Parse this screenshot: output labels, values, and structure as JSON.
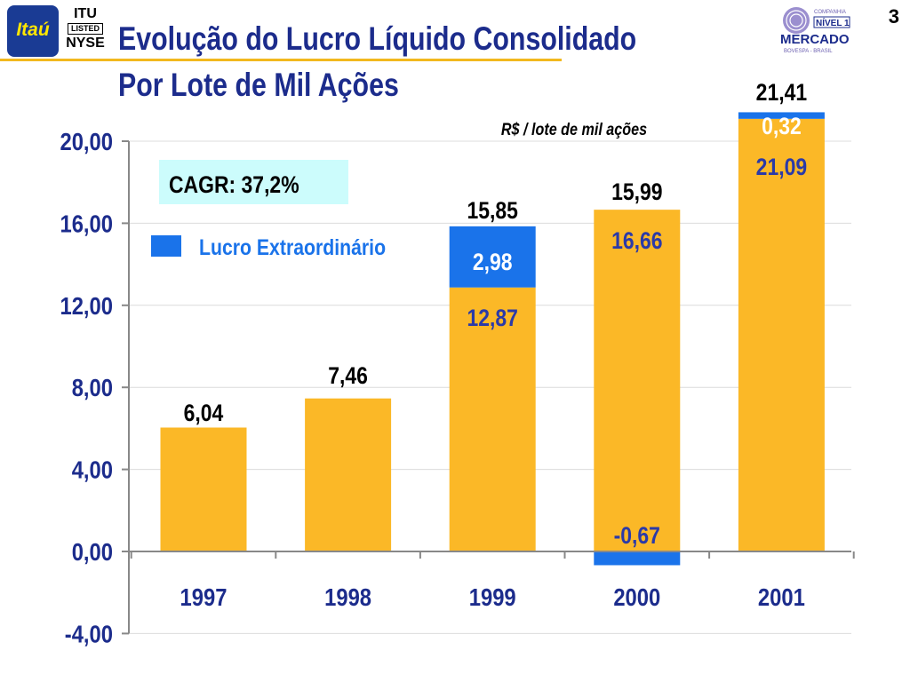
{
  "header": {
    "title_line1": "Evolução do Lucro Líquido Consolidado",
    "title_line2": "Por Lote de Mil Ações",
    "logo_itau": "Itaú",
    "listed_top": "ITU",
    "listed_mid": "LISTED",
    "listed_bottom": "NYSE",
    "bovespa_line1": "COMPANHIA",
    "bovespa_line2": "NÍVEL 1",
    "bovespa_line3": "MERCADO",
    "bovespa_line4": "BOVESPA - BRASIL",
    "page_number": "3"
  },
  "colors": {
    "title": "#1c2c8c",
    "bar_regular": "#fbb827",
    "bar_extraordinary": "#1a73ea",
    "value_label_blue": "#2b3aa8",
    "cagr_box": "#ccfcfc",
    "accent_line": "#f2b81e"
  },
  "chart_data": {
    "type": "bar",
    "subtitle": "R$ / lote de mil ações",
    "categories": [
      "1997",
      "1998",
      "1999",
      "2000",
      "2001"
    ],
    "series": [
      {
        "values": [
          6.04,
          7.46,
          12.87,
          16.66,
          21.09
        ],
        "labels": [
          "",
          "",
          "12,87",
          "16,66",
          "21,09"
        ]
      },
      {
        "name": "Lucro Extraordinário",
        "values": [
          0,
          0,
          2.98,
          -0.67,
          0.32
        ],
        "labels": [
          "",
          "",
          "2,98",
          "-0,67",
          "0,32"
        ]
      }
    ],
    "totals": [
      "6,04",
      "7,46",
      "15,85",
      "15,99",
      "21,41"
    ],
    "yticks": [
      "20,00",
      "16,00",
      "12,00",
      "8,00",
      "4,00",
      "0,00",
      "-4,00"
    ],
    "ytick_values": [
      20,
      16,
      12,
      8,
      4,
      0,
      -4
    ],
    "ylim": [
      -4,
      20
    ],
    "grid": true,
    "annotation": "CAGR: 37,2%",
    "legend": [
      "Lucro Extraordinário"
    ]
  }
}
